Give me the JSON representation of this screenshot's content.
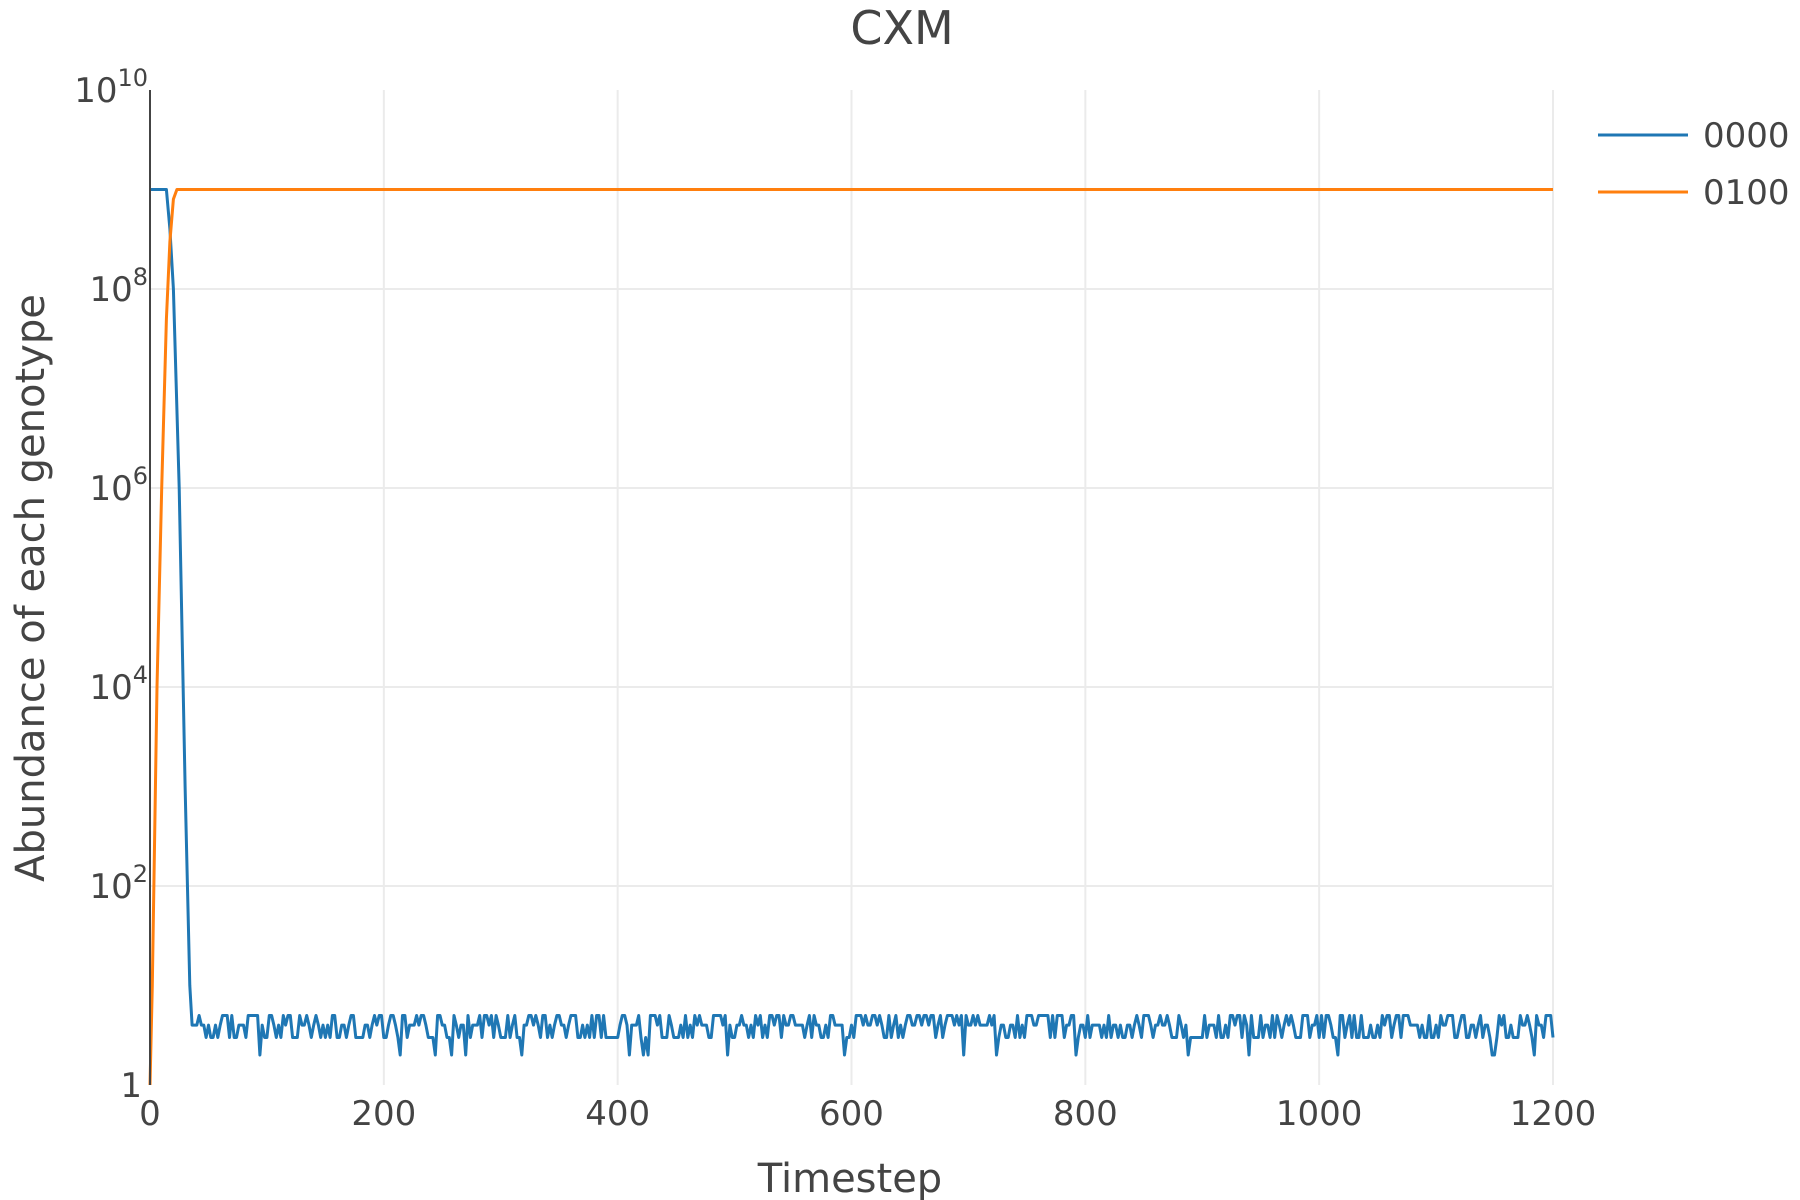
{
  "chart_data": {
    "type": "line",
    "title": "CXM",
    "xlabel": "Timestep",
    "ylabel": "Abundance of each genotype",
    "xlim": [
      0,
      1200
    ],
    "ylim": [
      1,
      10000000000
    ],
    "yscale": "log",
    "x_ticks": [
      {
        "value": 0,
        "label": "0"
      },
      {
        "value": 200,
        "label": "200"
      },
      {
        "value": 400,
        "label": "400"
      },
      {
        "value": 600,
        "label": "600"
      },
      {
        "value": 800,
        "label": "800"
      },
      {
        "value": 1000,
        "label": "1000"
      },
      {
        "value": 1200,
        "label": "1200"
      }
    ],
    "y_ticks": [
      {
        "value": 1,
        "base": "1",
        "exp": ""
      },
      {
        "value": 100,
        "base": "10",
        "exp": "2"
      },
      {
        "value": 10000,
        "base": "10",
        "exp": "4"
      },
      {
        "value": 1000000,
        "base": "10",
        "exp": "6"
      },
      {
        "value": 100000000,
        "base": "10",
        "exp": "8"
      },
      {
        "value": 10000000000,
        "base": "10",
        "exp": "10"
      }
    ],
    "grid": true,
    "legend": "right",
    "series": [
      {
        "name": "0000",
        "color": "#1f77b4",
        "points": [
          [
            0,
            1000000000
          ],
          [
            14,
            1000000000
          ],
          [
            17,
            400000000
          ],
          [
            20,
            100000000
          ],
          [
            25,
            1000000
          ],
          [
            30,
            1000
          ],
          [
            34,
            10
          ],
          [
            36,
            4
          ],
          [
            1200,
            4
          ]
        ],
        "noise": {
          "from": 36,
          "to": 1200,
          "levels": [
            3,
            4,
            5
          ],
          "min": 2
        }
      },
      {
        "name": "0100",
        "color": "#ff7f0e",
        "points": [
          [
            0,
            1
          ],
          [
            2,
            10
          ],
          [
            6,
            10000
          ],
          [
            10,
            1000000
          ],
          [
            14,
            50000000
          ],
          [
            17,
            300000000
          ],
          [
            20,
            800000000
          ],
          [
            23,
            1000000000
          ],
          [
            1200,
            1000000000
          ]
        ]
      }
    ]
  }
}
